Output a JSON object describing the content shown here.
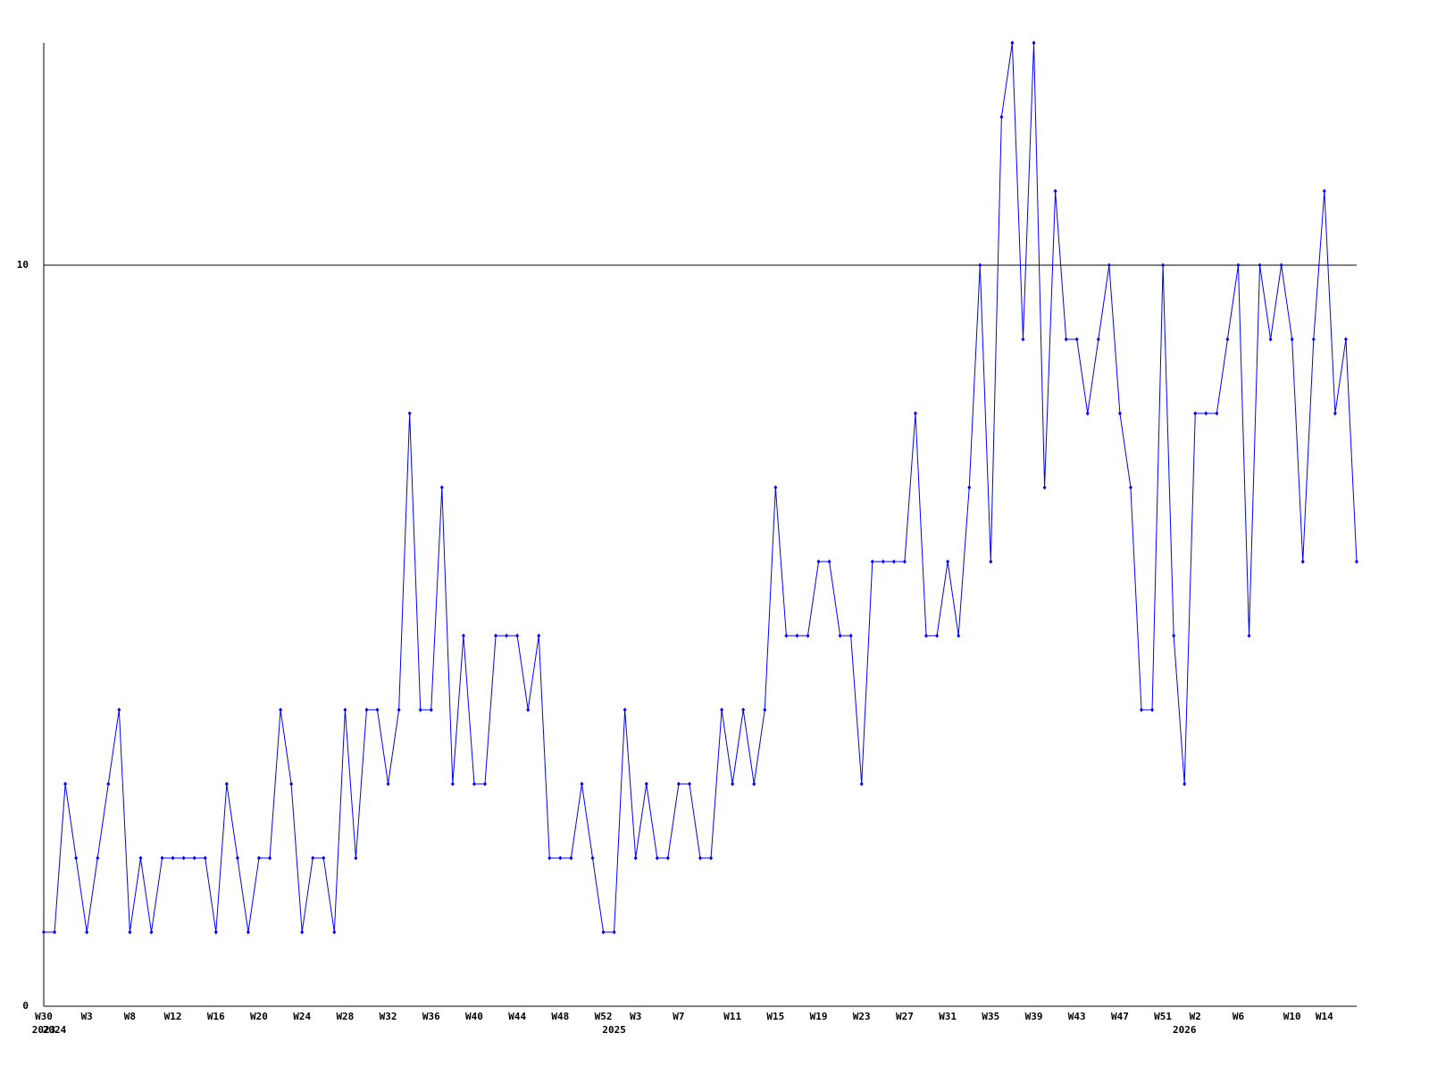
{
  "chart_data": {
    "type": "line",
    "categories": [
      "W30",
      null,
      null,
      null,
      "W3",
      null,
      null,
      null,
      "W8",
      null,
      null,
      null,
      "W12",
      null,
      null,
      null,
      "W16",
      null,
      null,
      null,
      "W20",
      null,
      null,
      null,
      "W24",
      null,
      null,
      null,
      "W28",
      null,
      null,
      null,
      "W32",
      null,
      null,
      null,
      "W36",
      null,
      null,
      null,
      "W40",
      null,
      null,
      null,
      "W44",
      null,
      null,
      null,
      "W48",
      null,
      null,
      null,
      "W52",
      null,
      null,
      "W3",
      null,
      null,
      null,
      "W7",
      null,
      null,
      null,
      null,
      "W11",
      null,
      null,
      null,
      "W15",
      null,
      null,
      null,
      "W19",
      null,
      null,
      null,
      "W23",
      null,
      null,
      null,
      "W27",
      null,
      null,
      null,
      "W31",
      null,
      null,
      null,
      "W35",
      null,
      null,
      null,
      "W39",
      null,
      null,
      null,
      "W43",
      null,
      null,
      null,
      "W47",
      null,
      null,
      null,
      "W51",
      null,
      null,
      "W2",
      null,
      null,
      null,
      "W6",
      null,
      null,
      null,
      null,
      "W10",
      null,
      null,
      "W14",
      null,
      null,
      null
    ],
    "year_categories": [
      "2023",
      "2024",
      null,
      null,
      null,
      null,
      null,
      null,
      null,
      null,
      null,
      null,
      null,
      null,
      null,
      null,
      null,
      null,
      null,
      null,
      null,
      null,
      null,
      null,
      null,
      null,
      null,
      null,
      null,
      null,
      null,
      null,
      null,
      null,
      null,
      null,
      null,
      null,
      null,
      null,
      null,
      null,
      null,
      null,
      null,
      null,
      null,
      null,
      null,
      null,
      null,
      null,
      null,
      "2025",
      null,
      null,
      null,
      null,
      null,
      null,
      null,
      null,
      null,
      null,
      null,
      null,
      null,
      null,
      null,
      null,
      null,
      null,
      null,
      null,
      null,
      null,
      null,
      null,
      null,
      null,
      null,
      null,
      null,
      null,
      null,
      null,
      null,
      null,
      null,
      null,
      null,
      null,
      null,
      null,
      null,
      null,
      null,
      null,
      null,
      null,
      null,
      null,
      null,
      null,
      null,
      null,
      "2026",
      null,
      null,
      null,
      null,
      null,
      null,
      null,
      null,
      null,
      null,
      null,
      null,
      null,
      null,
      null,
      null
    ],
    "series": [
      {
        "color": "#0000ff",
        "values": [
          1,
          1,
          3,
          2,
          1,
          2,
          3,
          4,
          1,
          2,
          1,
          2,
          2,
          2,
          2,
          2,
          1,
          3,
          2,
          1,
          2,
          2,
          4,
          3,
          1,
          2,
          2,
          1,
          4,
          2,
          4,
          4,
          3,
          4,
          8,
          4,
          4,
          7,
          3,
          5,
          3,
          3,
          5,
          5,
          5,
          4,
          5,
          2,
          2,
          2,
          3,
          2,
          1,
          1,
          4,
          2,
          3,
          2,
          2,
          3,
          3,
          2,
          2,
          4,
          3,
          4,
          3,
          4,
          7,
          5,
          5,
          5,
          6,
          6,
          5,
          5,
          3,
          6,
          6,
          6,
          6,
          8,
          5,
          5,
          6,
          5,
          7,
          10,
          6,
          12,
          13,
          9,
          13,
          7,
          11,
          9,
          9,
          8,
          9,
          10,
          8,
          7,
          4,
          4,
          10,
          5,
          3,
          8,
          8,
          8,
          9,
          10,
          5,
          10,
          9,
          10,
          9,
          6,
          9,
          11,
          8,
          9,
          6
        ]
      }
    ],
    "ylim": [
      0,
      13
    ],
    "yticks": [
      0,
      10
    ],
    "grid": true
  }
}
